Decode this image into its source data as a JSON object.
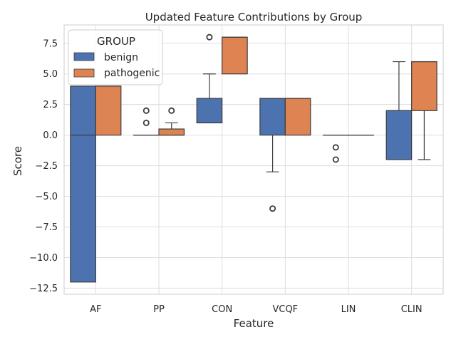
{
  "chart_data": {
    "type": "box",
    "title": "Updated Feature Contributions by Group",
    "xlabel": "Feature",
    "ylabel": "Score",
    "categories": [
      "AF",
      "PP",
      "CON",
      "VCQF",
      "LIN",
      "CLIN"
    ],
    "ylim": [
      -13,
      9
    ],
    "yticks": [
      7.5,
      5.0,
      2.5,
      0.0,
      -2.5,
      -5.0,
      -7.5,
      -10.0,
      -12.5
    ],
    "ytick_labels": [
      "7.5",
      "5.0",
      "2.5",
      "0.0",
      "−2.5",
      "−5.0",
      "−7.5",
      "−10.0",
      "−12.5"
    ],
    "grid": true,
    "legend": {
      "title": "GROUP",
      "placement": "top-left"
    },
    "series": [
      {
        "name": "benign",
        "color": "#4c72b0",
        "boxes": [
          {
            "category": "AF",
            "whislo": -12,
            "q1": -12,
            "med": 0,
            "q3": 4,
            "whishi": 4,
            "fliers": []
          },
          {
            "category": "PP",
            "whislo": 0,
            "q1": 0,
            "med": 0,
            "q3": 0,
            "whishi": 0,
            "fliers": [
              1,
              2
            ]
          },
          {
            "category": "CON",
            "whislo": 1,
            "q1": 1,
            "med": 1,
            "q3": 3,
            "whishi": 5,
            "fliers": [
              8
            ]
          },
          {
            "category": "VCQF",
            "whislo": -3,
            "q1": 0,
            "med": 3,
            "q3": 3,
            "whishi": 3,
            "fliers": [
              -6
            ]
          },
          {
            "category": "LIN",
            "whislo": 0,
            "q1": 0,
            "med": 0,
            "q3": 0,
            "whishi": 0,
            "fliers": [
              -1,
              -2
            ]
          },
          {
            "category": "CLIN",
            "whislo": -2,
            "q1": -2,
            "med": 2,
            "q3": 2,
            "whishi": 6,
            "fliers": []
          }
        ]
      },
      {
        "name": "pathogenic",
        "color": "#dd8452",
        "boxes": [
          {
            "category": "AF",
            "whislo": 0,
            "q1": 0,
            "med": 4,
            "q3": 4,
            "whishi": 4,
            "fliers": []
          },
          {
            "category": "PP",
            "whislo": 0,
            "q1": 0,
            "med": 0,
            "q3": 0.5,
            "whishi": 1,
            "fliers": [
              2
            ]
          },
          {
            "category": "CON",
            "whislo": 5,
            "q1": 5,
            "med": 8,
            "q3": 8,
            "whishi": 8,
            "fliers": []
          },
          {
            "category": "VCQF",
            "whislo": 0,
            "q1": 0,
            "med": 3,
            "q3": 3,
            "whishi": 3,
            "fliers": []
          },
          {
            "category": "LIN",
            "whislo": 0,
            "q1": 0,
            "med": 0,
            "q3": 0,
            "whishi": 0,
            "fliers": []
          },
          {
            "category": "CLIN",
            "whislo": -2,
            "q1": 2,
            "med": 6,
            "q3": 6,
            "whishi": 6,
            "fliers": []
          }
        ]
      }
    ]
  }
}
